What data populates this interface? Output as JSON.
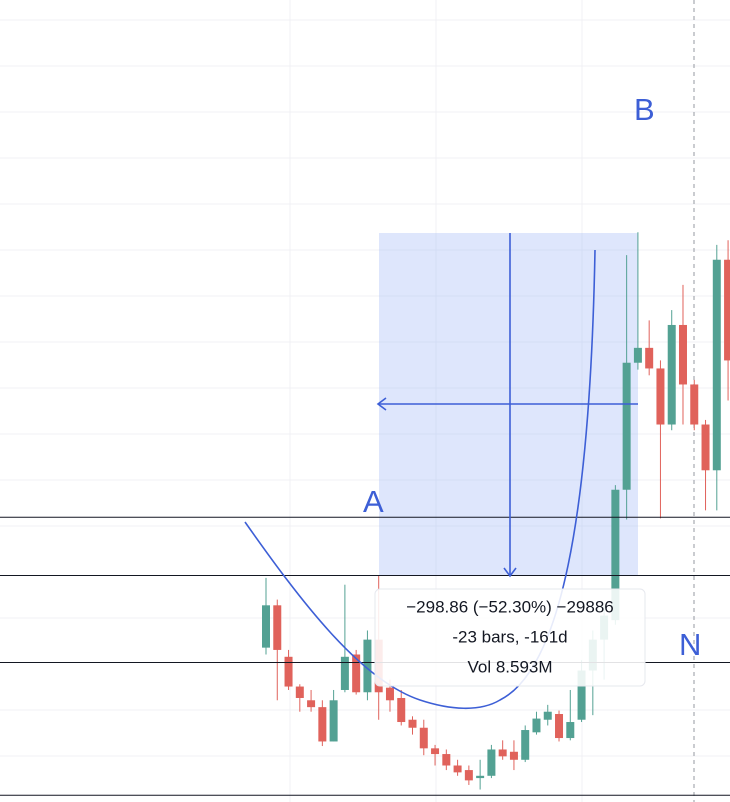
{
  "chart_data": {
    "type": "candlestick",
    "ylim": [
      74.1,
      775
    ],
    "up_color": "#53a193",
    "down_color": "#e0625b",
    "series": [
      {
        "open": [
          209,
          246,
          201,
          175,
          163,
          157,
          127,
          172,
          203,
          170,
          216,
          174,
          165,
          146,
          139,
          121,
          116,
          106,
          102,
          95,
          97,
          120,
          118,
          111,
          135,
          146,
          151,
          130,
          146,
          189,
          216,
          233,
          347,
          458,
          471,
          453,
          404,
          491,
          439,
          404,
          364,
          548
        ],
        "high": [
          270,
          251,
          207,
          177,
          172,
          163,
          172,
          264,
          207,
          224,
          272,
          181,
          172,
          149,
          146,
          124,
          120,
          111,
          106,
          111,
          124,
          128,
          128,
          141,
          153,
          159,
          154,
          172,
          198,
          224,
          246,
          351,
          552,
          572,
          495,
          460,
          504,
          526,
          443,
          408,
          561,
          565
        ],
        "low": [
          203,
          163,
          172,
          153,
          153,
          123,
          127,
          170,
          168,
          163,
          146,
          153,
          141,
          133,
          115,
          106,
          102,
          97,
          89,
          85,
          95,
          111,
          102,
          109,
          133,
          141,
          127,
          128,
          144,
          150,
          181,
          229,
          321,
          452,
          447,
          322,
          399,
          404,
          399,
          329,
          329,
          425
        ],
        "close": [
          246,
          207,
          175,
          165,
          157,
          127,
          163,
          201,
          170,
          216,
          170,
          163,
          144,
          139,
          121,
          116,
          106,
          100,
          93,
          97,
          120,
          114,
          111,
          137,
          147,
          153,
          130,
          144,
          189,
          216,
          237,
          347,
          458,
          471,
          453,
          404,
          491,
          439,
          404,
          364,
          548,
          460
        ]
      }
    ],
    "hlines": [
      323,
      272,
      196,
      80
    ],
    "labels": [
      "A",
      "B",
      "N"
    ],
    "tooltip": [
      "−298.86 (−52.30%) −29886",
      "-23 bars, -161d",
      "Vol 8.593M"
    ]
  }
}
